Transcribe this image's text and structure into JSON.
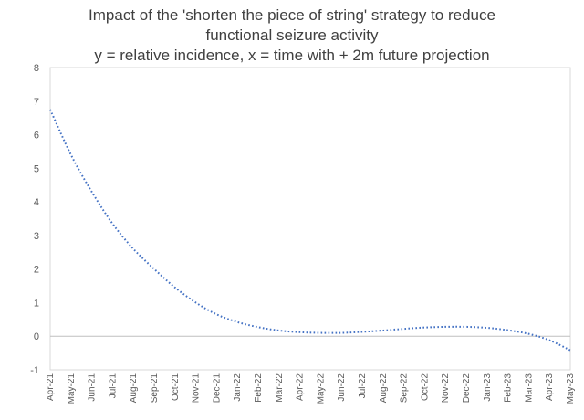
{
  "title_lines": [
    "Impact of the 'shorten the piece of string' strategy to reduce",
    "functional seizure activity",
    "y = relative incidence, x = time with + 2m future projection"
  ],
  "chart_data": {
    "type": "line",
    "title": "Impact of the 'shorten the piece of string' strategy to reduce functional seizure activity",
    "subtitle": "y = relative incidence, x = time with + 2m future projection",
    "categories": [
      "Apr-21",
      "May-21",
      "Jun-21",
      "Jul-21",
      "Aug-21",
      "Sep-21",
      "Oct-21",
      "Nov-21",
      "Dec-21",
      "Jan-22",
      "Feb-22",
      "Mar-22",
      "Apr-22",
      "May-22",
      "Jun-22",
      "Jul-22",
      "Aug-22",
      "Sep-22",
      "Oct-22",
      "Nov-22",
      "Dec-22",
      "Jan-23",
      "Feb-23",
      "Mar-23",
      "Apr-23",
      "May-23"
    ],
    "series": [
      {
        "style": "dotted",
        "color": "#4472C4",
        "values": [
          6.75,
          5.4,
          4.3,
          3.35,
          2.6,
          2.0,
          1.45,
          1.0,
          0.65,
          0.42,
          0.27,
          0.17,
          0.12,
          0.1,
          0.1,
          0.13,
          0.17,
          0.22,
          0.26,
          0.28,
          0.28,
          0.25,
          0.18,
          0.07,
          -0.12,
          -0.42
        ]
      }
    ],
    "ylim": [
      -1,
      8
    ],
    "yticks": [
      -1,
      0,
      1,
      2,
      3,
      4,
      5,
      6,
      7,
      8
    ],
    "grid": false,
    "legend": "none",
    "xlabel": "",
    "ylabel": ""
  }
}
